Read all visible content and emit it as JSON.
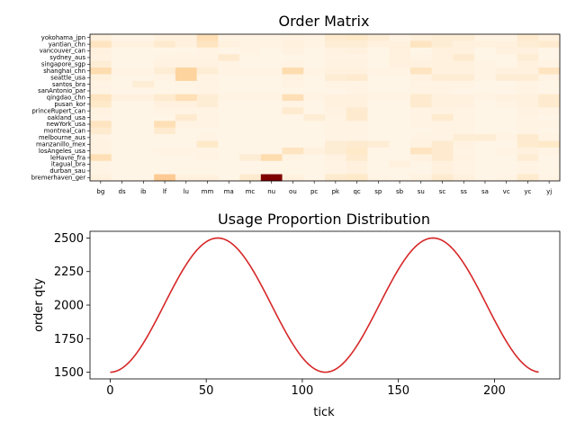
{
  "colors": {
    "heatmap_low": "#fff7ec",
    "heatmap_high": "#7f0000",
    "line": "#d62728"
  },
  "chart_data": [
    {
      "type": "heatmap",
      "title": "Order Matrix",
      "rows": [
        "yokohama_jpn",
        "yantian_chn",
        "vancouver_can",
        "sydney_aus",
        "singapore_sgp",
        "shanghai_chn",
        "seattle_usa",
        "santos_bra",
        "sanAntonio_par",
        "qingdao_chn",
        "pusan_kor",
        "princeRupert_can",
        "oakland_usa",
        "newYork_usa",
        "montreal_can",
        "melbourne_aus",
        "manzanillo_mex",
        "losAngeles_usa",
        "leHavre_fra",
        "itagual_bra",
        "durban_sau",
        "bremerhaven_ger"
      ],
      "cols": [
        "bg",
        "ds",
        "ib",
        "lf",
        "lu",
        "mm",
        "ma",
        "mc",
        "nu",
        "ou",
        "pc",
        "pk",
        "qc",
        "sp",
        "sb",
        "su",
        "sc",
        "ss",
        "sa",
        "vc",
        "yc",
        "yj"
      ],
      "values": [
        [
          0.05,
          0.02,
          0.02,
          0.05,
          0.05,
          0.18,
          0.03,
          0.03,
          0.03,
          0.04,
          0.03,
          0.1,
          0.12,
          0.08,
          0.03,
          0.06,
          0.08,
          0.08,
          0.03,
          0.03,
          0.1,
          0.05
        ],
        [
          0.15,
          0.05,
          0.05,
          0.1,
          0.05,
          0.15,
          0.05,
          0.03,
          0.03,
          0.05,
          0.03,
          0.08,
          0.08,
          0.05,
          0.05,
          0.15,
          0.08,
          0.05,
          0.05,
          0.05,
          0.08,
          0.1
        ],
        [
          0.05,
          0.02,
          0.02,
          0.02,
          0.02,
          0.03,
          0.02,
          0.03,
          0.02,
          0.04,
          0.02,
          0.04,
          0.05,
          0.02,
          0.05,
          0.02,
          0.05,
          0.05,
          0.02,
          0.05,
          0.05,
          0.02
        ],
        [
          0.04,
          0.02,
          0.02,
          0.03,
          0.03,
          0.03,
          0.1,
          0.02,
          0.02,
          0.02,
          0.02,
          0.03,
          0.03,
          0.02,
          0.05,
          0.03,
          0.05,
          0.1,
          0.02,
          0.02,
          0.08,
          0.02
        ],
        [
          0.08,
          0.02,
          0.02,
          0.04,
          0.04,
          0.04,
          0.03,
          0.02,
          0.02,
          0.03,
          0.02,
          0.04,
          0.04,
          0.02,
          0.05,
          0.05,
          0.05,
          0.05,
          0.03,
          0.02,
          0.05,
          0.03
        ],
        [
          0.2,
          0.03,
          0.03,
          0.08,
          0.25,
          0.08,
          0.03,
          0.03,
          0.03,
          0.2,
          0.03,
          0.05,
          0.05,
          0.03,
          0.03,
          0.15,
          0.05,
          0.05,
          0.03,
          0.05,
          0.05,
          0.15
        ],
        [
          0.05,
          0.02,
          0.02,
          0.03,
          0.25,
          0.03,
          0.02,
          0.02,
          0.02,
          0.04,
          0.02,
          0.08,
          0.1,
          0.02,
          0.02,
          0.04,
          0.08,
          0.08,
          0.03,
          0.08,
          0.08,
          0.03
        ],
        [
          0.03,
          0.02,
          0.08,
          0.02,
          0.03,
          0.03,
          0.02,
          0.02,
          0.02,
          0.03,
          0.02,
          0.03,
          0.03,
          0.02,
          0.02,
          0.03,
          0.03,
          0.03,
          0.02,
          0.02,
          0.03,
          0.02
        ],
        [
          0.03,
          0.02,
          0.02,
          0.02,
          0.02,
          0.03,
          0.02,
          0.02,
          0.02,
          0.02,
          0.02,
          0.02,
          0.03,
          0.02,
          0.02,
          0.03,
          0.03,
          0.02,
          0.02,
          0.02,
          0.03,
          0.02
        ],
        [
          0.15,
          0.05,
          0.05,
          0.1,
          0.18,
          0.08,
          0.03,
          0.03,
          0.03,
          0.18,
          0.03,
          0.05,
          0.05,
          0.03,
          0.03,
          0.1,
          0.05,
          0.05,
          0.03,
          0.05,
          0.05,
          0.1
        ],
        [
          0.12,
          0.02,
          0.02,
          0.05,
          0.05,
          0.08,
          0.02,
          0.02,
          0.02,
          0.03,
          0.02,
          0.05,
          0.05,
          0.02,
          0.02,
          0.1,
          0.05,
          0.05,
          0.02,
          0.03,
          0.05,
          0.1
        ],
        [
          0.04,
          0.02,
          0.02,
          0.03,
          0.03,
          0.03,
          0.02,
          0.02,
          0.02,
          0.1,
          0.02,
          0.04,
          0.1,
          0.02,
          0.02,
          0.03,
          0.04,
          0.03,
          0.02,
          0.02,
          0.04,
          0.03
        ],
        [
          0.03,
          0.02,
          0.02,
          0.02,
          0.1,
          0.03,
          0.02,
          0.02,
          0.02,
          0.02,
          0.08,
          0.03,
          0.1,
          0.02,
          0.02,
          0.03,
          0.1,
          0.03,
          0.02,
          0.02,
          0.03,
          0.02
        ],
        [
          0.15,
          0.02,
          0.02,
          0.18,
          0.03,
          0.03,
          0.02,
          0.02,
          0.02,
          0.02,
          0.02,
          0.03,
          0.03,
          0.02,
          0.02,
          0.03,
          0.03,
          0.03,
          0.02,
          0.02,
          0.03,
          0.03
        ],
        [
          0.1,
          0.02,
          0.02,
          0.1,
          0.02,
          0.02,
          0.02,
          0.02,
          0.02,
          0.02,
          0.02,
          0.03,
          0.03,
          0.02,
          0.02,
          0.02,
          0.03,
          0.03,
          0.02,
          0.02,
          0.03,
          0.02
        ],
        [
          0.03,
          0.02,
          0.02,
          0.02,
          0.02,
          0.03,
          0.02,
          0.02,
          0.02,
          0.02,
          0.02,
          0.03,
          0.03,
          0.02,
          0.02,
          0.03,
          0.03,
          0.08,
          0.08,
          0.03,
          0.1,
          0.03
        ],
        [
          0.04,
          0.02,
          0.02,
          0.02,
          0.02,
          0.12,
          0.02,
          0.02,
          0.02,
          0.02,
          0.02,
          0.08,
          0.1,
          0.08,
          0.02,
          0.04,
          0.1,
          0.04,
          0.02,
          0.02,
          0.1,
          0.12
        ],
        [
          0.04,
          0.02,
          0.02,
          0.03,
          0.03,
          0.03,
          0.02,
          0.02,
          0.02,
          0.15,
          0.05,
          0.08,
          0.12,
          0.02,
          0.02,
          0.15,
          0.1,
          0.03,
          0.02,
          0.03,
          0.05,
          0.03
        ],
        [
          0.18,
          0.02,
          0.02,
          0.02,
          0.02,
          0.03,
          0.02,
          0.08,
          0.2,
          0.03,
          0.02,
          0.04,
          0.1,
          0.02,
          0.02,
          0.04,
          0.1,
          0.04,
          0.02,
          0.02,
          0.08,
          0.02
        ],
        [
          0.03,
          0.02,
          0.02,
          0.02,
          0.02,
          0.02,
          0.02,
          0.02,
          0.02,
          0.02,
          0.02,
          0.03,
          0.05,
          0.02,
          0.05,
          0.02,
          0.05,
          0.03,
          0.02,
          0.02,
          0.03,
          0.02
        ],
        [
          0.03,
          0.02,
          0.02,
          0.02,
          0.02,
          0.02,
          0.02,
          0.02,
          0.02,
          0.02,
          0.02,
          0.03,
          0.05,
          0.02,
          0.02,
          0.02,
          0.05,
          0.03,
          0.02,
          0.02,
          0.03,
          0.02
        ],
        [
          0.05,
          0.02,
          0.02,
          0.3,
          0.05,
          0.05,
          0.02,
          0.1,
          1.0,
          0.05,
          0.02,
          0.1,
          0.12,
          0.03,
          0.02,
          0.04,
          0.1,
          0.05,
          0.02,
          0.03,
          0.1,
          0.03
        ]
      ]
    },
    {
      "type": "line",
      "title": "Usage Proportion Distribution",
      "xlabel": "tick",
      "ylabel": "order qty",
      "xlim": [
        -10.5,
        234
      ],
      "ylim": [
        1450,
        2550
      ],
      "xticks": [
        0,
        50,
        100,
        150,
        200
      ],
      "yticks": [
        1500,
        1750,
        2000,
        2250,
        2500
      ],
      "series": [
        {
          "curve": "2000 - 500*cos(2*pi*x/112)",
          "x_range": [
            0,
            223
          ],
          "x_step": 1,
          "y_min": 1500,
          "y_max": 2500,
          "period": 112
        }
      ]
    }
  ]
}
